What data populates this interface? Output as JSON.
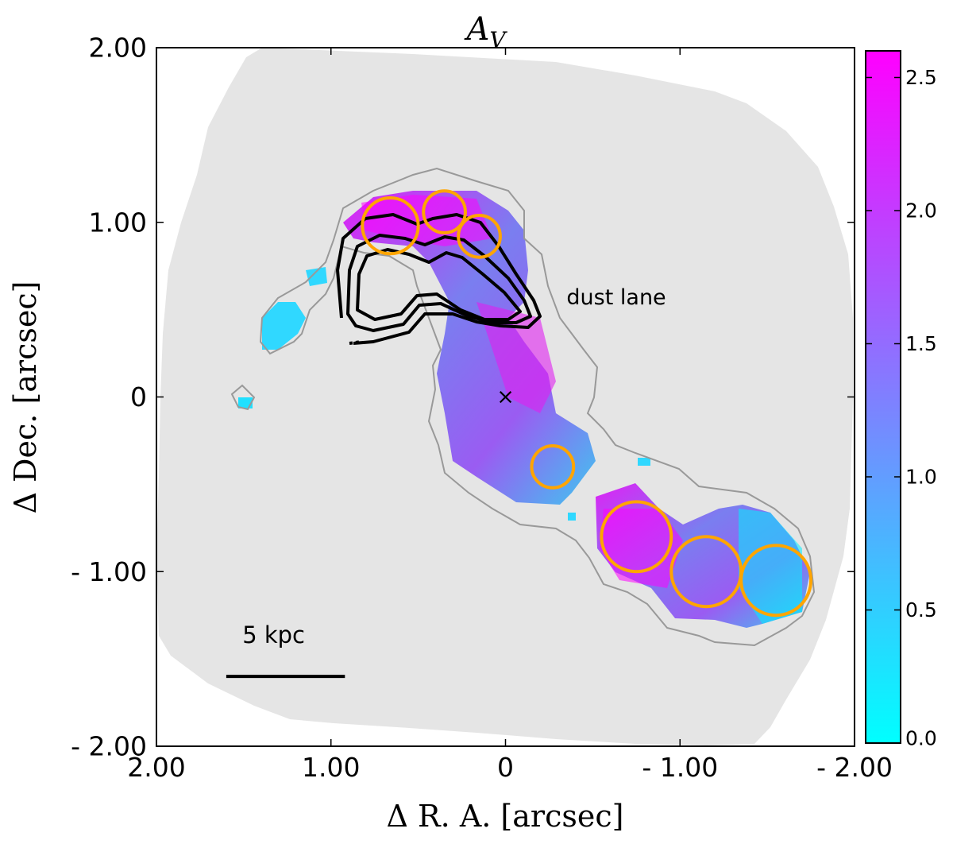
{
  "chart_data": {
    "type": "heatmap",
    "title_main": "A",
    "title_sub": "V",
    "xlabel": "Δ R. A.  [arcsec]",
    "ylabel": "Δ Dec.  [arcsec]",
    "xlim": [
      2.0,
      -2.0
    ],
    "ylim": [
      -2.0,
      2.0
    ],
    "x_ticks": [
      {
        "value": 2.0,
        "label": "2.00"
      },
      {
        "value": 1.0,
        "label": "1.00"
      },
      {
        "value": 0.0,
        "label": "0"
      },
      {
        "value": -1.0,
        "label": "- 1.00"
      },
      {
        "value": -2.0,
        "label": "- 2.00"
      }
    ],
    "y_ticks": [
      {
        "value": 2.0,
        "label": "2.00"
      },
      {
        "value": 1.0,
        "label": "1.00"
      },
      {
        "value": 0.0,
        "label": "0"
      },
      {
        "value": -1.0,
        "label": "- 1.00"
      },
      {
        "value": -2.0,
        "label": "- 2.00"
      }
    ],
    "colorbar": {
      "range": [
        0.0,
        2.6
      ],
      "ticks": [
        {
          "value": 0.0,
          "label": "0.0"
        },
        {
          "value": 0.5,
          "label": "0.5"
        },
        {
          "value": 1.0,
          "label": "1.0"
        },
        {
          "value": 1.5,
          "label": "1.5"
        },
        {
          "value": 2.0,
          "label": "2.0"
        },
        {
          "value": 2.5,
          "label": "2.5"
        }
      ],
      "colors": [
        "#00ffff",
        "#ff00ff"
      ]
    },
    "regions": [
      {
        "x": 0.66,
        "y": 0.98,
        "r": 0.16
      },
      {
        "x": 0.35,
        "y": 1.06,
        "r": 0.12
      },
      {
        "x": 0.15,
        "y": 0.92,
        "r": 0.12
      },
      {
        "x": -0.27,
        "y": -0.4,
        "r": 0.12
      },
      {
        "x": -0.75,
        "y": -0.8,
        "r": 0.2
      },
      {
        "x": -1.15,
        "y": -1.0,
        "r": 0.2
      },
      {
        "x": -1.55,
        "y": -1.05,
        "r": 0.2
      }
    ],
    "region_color": "#ffa500",
    "center_marker": {
      "x": 0.0,
      "y": 0.0,
      "symbol": "×"
    },
    "annotation": {
      "text": "dust lane",
      "x": -0.35,
      "y": 0.53
    },
    "scale_bar": {
      "label": "5 kpc",
      "x_start": 1.6,
      "x_end": 0.92,
      "y": -1.6
    },
    "background_color": "#e5e5e5",
    "data_outline_color": "#999999",
    "contour_color": "#000000"
  }
}
